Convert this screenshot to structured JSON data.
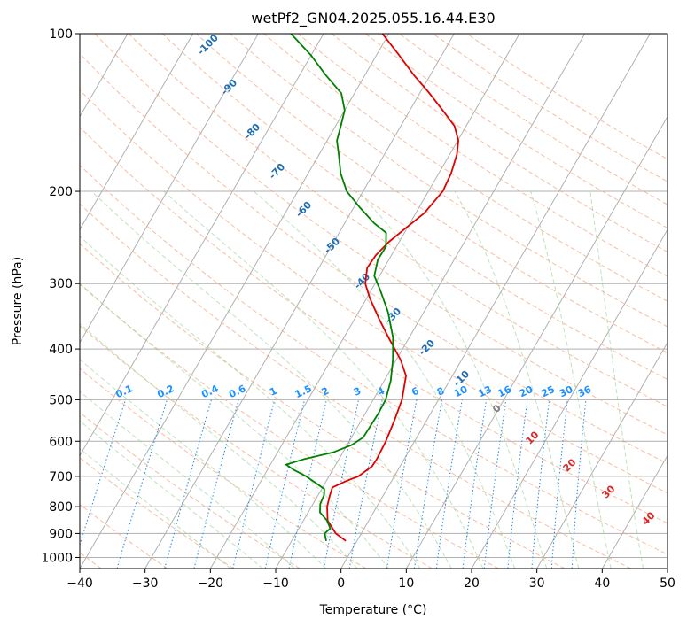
{
  "chart_data": {
    "type": "line",
    "title": "wetPf2_GN04.2025.055.16.44.E30",
    "xlabel": "Temperature (°C)",
    "ylabel": "Pressure (hPa)",
    "xlim": [
      -40,
      50
    ],
    "ylim_hpa": [
      1050,
      100
    ],
    "y_scale": "log",
    "grid": true,
    "x_ticks": [
      -40,
      -30,
      -20,
      -10,
      0,
      10,
      20,
      30,
      40,
      50
    ],
    "y_ticks": [
      1000,
      900,
      800,
      700,
      600,
      500,
      400,
      300,
      200,
      100
    ],
    "skew_degrees": 30,
    "series": [
      {
        "role": "temperature",
        "color": "#e00000",
        "points": [
          [
            930,
            -1.7
          ],
          [
            900,
            -3.9
          ],
          [
            850,
            -6.3
          ],
          [
            800,
            -7.6
          ],
          [
            760,
            -8.2
          ],
          [
            735,
            -8.5
          ],
          [
            715,
            -7.0
          ],
          [
            700,
            -5.5
          ],
          [
            670,
            -4.3
          ],
          [
            650,
            -4.2
          ],
          [
            600,
            -4.4
          ],
          [
            550,
            -4.9
          ],
          [
            500,
            -5.6
          ],
          [
            450,
            -7.1
          ],
          [
            420,
            -9.3
          ],
          [
            400,
            -11.2
          ],
          [
            380,
            -13.2
          ],
          [
            350,
            -16.3
          ],
          [
            320,
            -19.5
          ],
          [
            300,
            -21.5
          ],
          [
            280,
            -22.6
          ],
          [
            265,
            -22.4
          ],
          [
            250,
            -21.6
          ],
          [
            235,
            -20.2
          ],
          [
            220,
            -18.7
          ],
          [
            200,
            -17.8
          ],
          [
            185,
            -18.1
          ],
          [
            170,
            -18.9
          ],
          [
            160,
            -19.9
          ],
          [
            150,
            -21.8
          ],
          [
            140,
            -25.0
          ],
          [
            130,
            -28.5
          ],
          [
            120,
            -32.5
          ],
          [
            110,
            -36.5
          ],
          [
            100,
            -41.0
          ]
        ]
      },
      {
        "role": "dewpoint",
        "color": "#008000",
        "points": [
          [
            930,
            -4.7
          ],
          [
            900,
            -5.6
          ],
          [
            880,
            -5.2
          ],
          [
            850,
            -6.4
          ],
          [
            820,
            -8.2
          ],
          [
            790,
            -8.9
          ],
          [
            760,
            -9.1
          ],
          [
            740,
            -9.6
          ],
          [
            720,
            -11.5
          ],
          [
            700,
            -13.5
          ],
          [
            680,
            -16.0
          ],
          [
            665,
            -17.6
          ],
          [
            650,
            -15.5
          ],
          [
            630,
            -11.5
          ],
          [
            610,
            -9.3
          ],
          [
            590,
            -8.2
          ],
          [
            560,
            -8.1
          ],
          [
            530,
            -8.0
          ],
          [
            500,
            -8.1
          ],
          [
            460,
            -9.0
          ],
          [
            420,
            -10.5
          ],
          [
            380,
            -12.5
          ],
          [
            340,
            -15.5
          ],
          [
            310,
            -18.5
          ],
          [
            290,
            -20.8
          ],
          [
            270,
            -21.7
          ],
          [
            255,
            -21.6
          ],
          [
            240,
            -22.8
          ],
          [
            230,
            -25.5
          ],
          [
            215,
            -29.0
          ],
          [
            200,
            -32.5
          ],
          [
            185,
            -35.0
          ],
          [
            170,
            -37.0
          ],
          [
            160,
            -38.5
          ],
          [
            150,
            -39.2
          ],
          [
            140,
            -40.0
          ],
          [
            130,
            -42.0
          ],
          [
            120,
            -46.0
          ],
          [
            110,
            -50.0
          ],
          [
            100,
            -55.0
          ]
        ]
      }
    ],
    "reference_lines": {
      "isotherms_c": [
        -120,
        -110,
        -100,
        -90,
        -80,
        -70,
        -60,
        -50,
        -40,
        -30,
        -20,
        -10,
        0,
        10,
        20,
        30,
        40,
        50
      ],
      "dry_adiabats_c": [
        -100,
        -90,
        -80,
        -70,
        -60,
        -50,
        -40,
        -30,
        -20,
        -10,
        0,
        10,
        20,
        30,
        40,
        50,
        60,
        70,
        80,
        90,
        100,
        110,
        120,
        130,
        140,
        150,
        160,
        170,
        180,
        190,
        200
      ],
      "moist_adiabats_c": [
        -20,
        -15,
        -10,
        -5,
        0,
        5,
        10,
        15,
        20,
        25,
        30,
        35,
        40,
        45
      ],
      "mixing_ratios_gkg": [
        0.1,
        0.2,
        0.4,
        0.6,
        1,
        1.5,
        2,
        3,
        4,
        6,
        8,
        10,
        13,
        16,
        20,
        25,
        30,
        36
      ]
    },
    "annotations": {
      "dry_adiabat_labels": [
        "-100",
        "-90",
        "-80",
        "-70",
        "-60",
        "-50",
        "-40",
        "-30",
        "-20",
        "-10"
      ],
      "moist_adiabat_labels": [
        "0",
        "10",
        "20",
        "30",
        "40"
      ],
      "mixing_ratio_labels": [
        "0.1",
        "0.2",
        "0.4",
        "0.6",
        "1",
        "1.5",
        "2",
        "3",
        "4",
        "6",
        "8",
        "10",
        "13",
        "16",
        "20",
        "25",
        "30",
        "36"
      ]
    }
  }
}
